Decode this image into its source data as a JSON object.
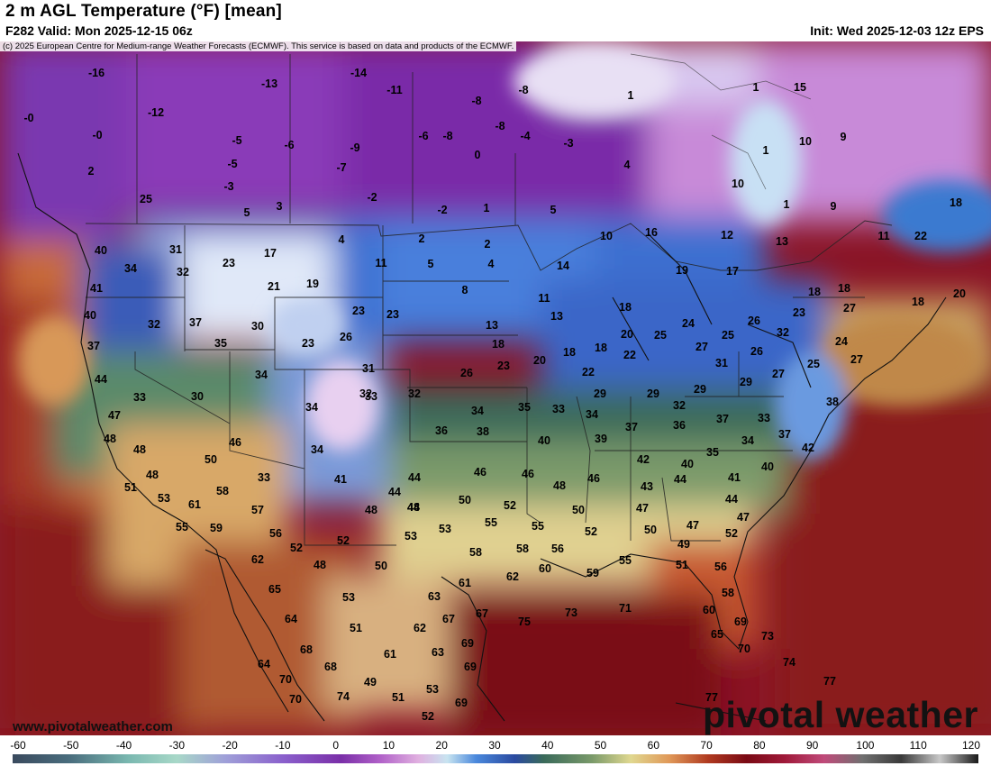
{
  "header": {
    "title": "2 m AGL Temperature (°F) [mean]",
    "valid": "F282 Valid: Mon 2025-12-15 06z",
    "init": "Init: Wed 2025-12-03 12z EPS",
    "copyright": "(c) 2025 European Centre for Medium-range Weather Forecasts (ECMWF). This service is based on data and products of the ECMWF."
  },
  "branding": {
    "website": "www.pivotalweather.com",
    "logo": "pivotal weather"
  },
  "colorbar": {
    "ticks": [
      "-60",
      "-50",
      "-40",
      "-30",
      "-20",
      "-10",
      "0",
      "10",
      "20",
      "30",
      "40",
      "50",
      "60",
      "70",
      "80",
      "90",
      "100",
      "110",
      "120"
    ],
    "palette": [
      "#3a4a5e",
      "#4a6a7a",
      "#6aa0a0",
      "#8cc8c0",
      "#9f9fd8",
      "#8a6ad0",
      "#7a2fa8",
      "#a84fc0",
      "#d48ad8",
      "#d8c0e8",
      "#c8e8f0",
      "#3f7fd8",
      "#2f4fa0",
      "#3a6a5a",
      "#5a8a5a",
      "#d8d08a",
      "#e8a860",
      "#c85a2a",
      "#8a1a1a",
      "#6a0a1a",
      "#b01a50",
      "#6a6a6a",
      "#3a3a3a",
      "#d8d8d8",
      "#1a1a1a"
    ]
  },
  "temperature_labels": [
    {
      "value": "-16",
      "id": "t1"
    },
    {
      "value": "-14",
      "id": "t2"
    },
    {
      "value": "-13",
      "id": "t3"
    },
    {
      "value": "-11",
      "id": "t4"
    },
    {
      "value": "-12",
      "id": "t5"
    },
    {
      "value": "-0",
      "id": "t6"
    },
    {
      "value": "-0",
      "id": "t7"
    },
    {
      "value": "-8",
      "id": "t8"
    },
    {
      "value": "-5",
      "id": "t9"
    },
    {
      "value": "-6",
      "id": "t10"
    },
    {
      "value": "-9",
      "id": "t11"
    },
    {
      "value": "-7",
      "id": "t12"
    },
    {
      "value": "-5",
      "id": "t13"
    },
    {
      "value": "-3",
      "id": "t14"
    },
    {
      "value": "2",
      "id": "t15"
    },
    {
      "value": "5",
      "id": "t16"
    },
    {
      "value": "3",
      "id": "t17"
    },
    {
      "value": "-2",
      "id": "t18"
    },
    {
      "value": "25",
      "id": "t19"
    },
    {
      "value": "-6",
      "id": "t20"
    },
    {
      "value": "-8",
      "id": "t21"
    },
    {
      "value": "-8",
      "id": "t22"
    },
    {
      "value": "-8",
      "id": "t23"
    },
    {
      "value": "0",
      "id": "t24"
    },
    {
      "value": "-2",
      "id": "t25"
    },
    {
      "value": "1",
      "id": "t26"
    },
    {
      "value": "-4",
      "id": "t27"
    },
    {
      "value": "-3",
      "id": "t28"
    },
    {
      "value": "4",
      "id": "t29"
    },
    {
      "value": "5",
      "id": "t30"
    },
    {
      "value": "1",
      "id": "t31"
    },
    {
      "value": "1",
      "id": "t32"
    },
    {
      "value": "15",
      "id": "t33"
    },
    {
      "value": "10",
      "id": "t34"
    },
    {
      "value": "9",
      "id": "t35"
    },
    {
      "value": "1",
      "id": "t36"
    },
    {
      "value": "10",
      "id": "t37"
    },
    {
      "value": "1",
      "id": "t38"
    },
    {
      "value": "9",
      "id": "t39"
    },
    {
      "value": "18",
      "id": "t40"
    },
    {
      "value": "11",
      "id": "t41"
    },
    {
      "value": "22",
      "id": "t42"
    },
    {
      "value": "13",
      "id": "t43"
    },
    {
      "value": "12",
      "id": "t44"
    },
    {
      "value": "18",
      "id": "t45"
    },
    {
      "value": "20",
      "id": "t46"
    },
    {
      "value": "18",
      "id": "t47"
    },
    {
      "value": "4",
      "id": "t48"
    },
    {
      "value": "2",
      "id": "t49"
    },
    {
      "value": "2",
      "id": "t50"
    },
    {
      "value": "4",
      "id": "t51"
    },
    {
      "value": "5",
      "id": "t52"
    },
    {
      "value": "11",
      "id": "t53"
    },
    {
      "value": "10",
      "id": "t54"
    },
    {
      "value": "16",
      "id": "t55"
    },
    {
      "value": "14",
      "id": "t56"
    },
    {
      "value": "17",
      "id": "t57"
    },
    {
      "value": "19",
      "id": "t58"
    },
    {
      "value": "31",
      "id": "t59"
    },
    {
      "value": "23",
      "id": "t60"
    },
    {
      "value": "17",
      "id": "t61"
    },
    {
      "value": "34",
      "id": "t62"
    },
    {
      "value": "32",
      "id": "t63"
    },
    {
      "value": "21",
      "id": "t64"
    },
    {
      "value": "19",
      "id": "t65"
    },
    {
      "value": "40",
      "id": "t66"
    },
    {
      "value": "41",
      "id": "t67"
    },
    {
      "value": "8",
      "id": "t68"
    },
    {
      "value": "11",
      "id": "t69"
    },
    {
      "value": "13",
      "id": "t70"
    },
    {
      "value": "18",
      "id": "t71"
    },
    {
      "value": "18",
      "id": "t72"
    },
    {
      "value": "27",
      "id": "t73"
    },
    {
      "value": "23",
      "id": "t74"
    },
    {
      "value": "40",
      "id": "t75"
    },
    {
      "value": "32",
      "id": "t76"
    },
    {
      "value": "37",
      "id": "t77"
    },
    {
      "value": "30",
      "id": "t78"
    },
    {
      "value": "23",
      "id": "t79"
    },
    {
      "value": "23",
      "id": "t80"
    },
    {
      "value": "26",
      "id": "t81"
    },
    {
      "value": "37",
      "id": "t82"
    },
    {
      "value": "35",
      "id": "t83"
    },
    {
      "value": "23",
      "id": "t84"
    },
    {
      "value": "18",
      "id": "t85"
    },
    {
      "value": "13",
      "id": "t86"
    },
    {
      "value": "20",
      "id": "t87"
    },
    {
      "value": "18",
      "id": "t88"
    },
    {
      "value": "18",
      "id": "t89"
    },
    {
      "value": "20",
      "id": "t90"
    },
    {
      "value": "25",
      "id": "t91"
    },
    {
      "value": "24",
      "id": "t92"
    },
    {
      "value": "26",
      "id": "t93"
    },
    {
      "value": "25",
      "id": "t94"
    },
    {
      "value": "32",
      "id": "t95"
    },
    {
      "value": "24",
      "id": "t96"
    },
    {
      "value": "44",
      "id": "t97"
    },
    {
      "value": "33",
      "id": "t98"
    },
    {
      "value": "34",
      "id": "t99"
    },
    {
      "value": "31",
      "id": "t100"
    },
    {
      "value": "26",
      "id": "t101"
    },
    {
      "value": "23",
      "id": "t102"
    },
    {
      "value": "22",
      "id": "t103"
    },
    {
      "value": "22",
      "id": "t104"
    },
    {
      "value": "27",
      "id": "t105"
    },
    {
      "value": "26",
      "id": "t106"
    },
    {
      "value": "31",
      "id": "t107"
    },
    {
      "value": "27",
      "id": "t108"
    },
    {
      "value": "25",
      "id": "t109"
    },
    {
      "value": "27",
      "id": "t110"
    },
    {
      "value": "47",
      "id": "t111"
    },
    {
      "value": "30",
      "id": "t112"
    },
    {
      "value": "32",
      "id": "t113"
    },
    {
      "value": "32",
      "id": "t114"
    },
    {
      "value": "34",
      "id": "t115"
    },
    {
      "value": "35",
      "id": "t116"
    },
    {
      "value": "33",
      "id": "t117"
    },
    {
      "value": "29",
      "id": "t118"
    },
    {
      "value": "29",
      "id": "t119"
    },
    {
      "value": "32",
      "id": "t120"
    },
    {
      "value": "29",
      "id": "t121"
    },
    {
      "value": "29",
      "id": "t122"
    },
    {
      "value": "38",
      "id": "t123"
    },
    {
      "value": "48",
      "id": "t124"
    },
    {
      "value": "46",
      "id": "t125"
    },
    {
      "value": "33",
      "id": "t126"
    },
    {
      "value": "36",
      "id": "t127"
    },
    {
      "value": "34",
      "id": "t128"
    },
    {
      "value": "38",
      "id": "t129"
    },
    {
      "value": "34",
      "id": "t130"
    },
    {
      "value": "37",
      "id": "t131"
    },
    {
      "value": "36",
      "id": "t132"
    },
    {
      "value": "37",
      "id": "t133"
    },
    {
      "value": "33",
      "id": "t134"
    },
    {
      "value": "37",
      "id": "t135"
    },
    {
      "value": "48",
      "id": "t136"
    },
    {
      "value": "50",
      "id": "t137"
    },
    {
      "value": "33",
      "id": "t138"
    },
    {
      "value": "34",
      "id": "t139"
    },
    {
      "value": "40",
      "id": "t140"
    },
    {
      "value": "39",
      "id": "t141"
    },
    {
      "value": "42",
      "id": "t142"
    },
    {
      "value": "35",
      "id": "t143"
    },
    {
      "value": "34",
      "id": "t144"
    },
    {
      "value": "42",
      "id": "t145"
    },
    {
      "value": "48",
      "id": "t146"
    },
    {
      "value": "51",
      "id": "t147"
    },
    {
      "value": "41",
      "id": "t148"
    },
    {
      "value": "44",
      "id": "t149"
    },
    {
      "value": "46",
      "id": "t150"
    },
    {
      "value": "46",
      "id": "t151"
    },
    {
      "value": "40",
      "id": "t152"
    },
    {
      "value": "40",
      "id": "t153"
    },
    {
      "value": "53",
      "id": "t154"
    },
    {
      "value": "61",
      "id": "t155"
    },
    {
      "value": "58",
      "id": "t156"
    },
    {
      "value": "44",
      "id": "t157"
    },
    {
      "value": "44",
      "id": "t158"
    },
    {
      "value": "48",
      "id": "t159"
    },
    {
      "value": "46",
      "id": "t160"
    },
    {
      "value": "43",
      "id": "t161"
    },
    {
      "value": "41",
      "id": "t162"
    },
    {
      "value": "44",
      "id": "t163"
    },
    {
      "value": "44",
      "id": "t164"
    },
    {
      "value": "57",
      "id": "t165"
    },
    {
      "value": "48",
      "id": "t166"
    },
    {
      "value": "48",
      "id": "t167"
    },
    {
      "value": "50",
      "id": "t168"
    },
    {
      "value": "52",
      "id": "t169"
    },
    {
      "value": "50",
      "id": "t170"
    },
    {
      "value": "47",
      "id": "t171"
    },
    {
      "value": "47",
      "id": "t172"
    },
    {
      "value": "55",
      "id": "t173"
    },
    {
      "value": "59",
      "id": "t174"
    },
    {
      "value": "56",
      "id": "t175"
    },
    {
      "value": "53",
      "id": "t176"
    },
    {
      "value": "53",
      "id": "t177"
    },
    {
      "value": "55",
      "id": "t178"
    },
    {
      "value": "55",
      "id": "t179"
    },
    {
      "value": "52",
      "id": "t180"
    },
    {
      "value": "50",
      "id": "t181"
    },
    {
      "value": "47",
      "id": "t182"
    },
    {
      "value": "52",
      "id": "t183"
    },
    {
      "value": "52",
      "id": "t184"
    },
    {
      "value": "52",
      "id": "t185"
    },
    {
      "value": "58",
      "id": "t186"
    },
    {
      "value": "58",
      "id": "t187"
    },
    {
      "value": "56",
      "id": "t188"
    },
    {
      "value": "49",
      "id": "t189"
    },
    {
      "value": "62",
      "id": "t190"
    },
    {
      "value": "48",
      "id": "t191"
    },
    {
      "value": "50",
      "id": "t192"
    },
    {
      "value": "62",
      "id": "t193"
    },
    {
      "value": "60",
      "id": "t194"
    },
    {
      "value": "59",
      "id": "t195"
    },
    {
      "value": "55",
      "id": "t196"
    },
    {
      "value": "51",
      "id": "t197"
    },
    {
      "value": "56",
      "id": "t198"
    },
    {
      "value": "65",
      "id": "t199"
    },
    {
      "value": "53",
      "id": "t200"
    },
    {
      "value": "61",
      "id": "t201"
    },
    {
      "value": "63",
      "id": "t202"
    },
    {
      "value": "58",
      "id": "t203"
    },
    {
      "value": "64",
      "id": "t204"
    },
    {
      "value": "51",
      "id": "t205"
    },
    {
      "value": "62",
      "id": "t206"
    },
    {
      "value": "67",
      "id": "t207"
    },
    {
      "value": "67",
      "id": "t208"
    },
    {
      "value": "75",
      "id": "t209"
    },
    {
      "value": "73",
      "id": "t210"
    },
    {
      "value": "71",
      "id": "t211"
    },
    {
      "value": "60",
      "id": "t212"
    },
    {
      "value": "69",
      "id": "t213"
    },
    {
      "value": "68",
      "id": "t214"
    },
    {
      "value": "61",
      "id": "t215"
    },
    {
      "value": "63",
      "id": "t216"
    },
    {
      "value": "69",
      "id": "t217"
    },
    {
      "value": "65",
      "id": "t218"
    },
    {
      "value": "70",
      "id": "t219"
    },
    {
      "value": "73",
      "id": "t220"
    },
    {
      "value": "64",
      "id": "t221"
    },
    {
      "value": "70",
      "id": "t222"
    },
    {
      "value": "68",
      "id": "t223"
    },
    {
      "value": "49",
      "id": "t224"
    },
    {
      "value": "69",
      "id": "t225"
    },
    {
      "value": "74",
      "id": "t226"
    },
    {
      "value": "70",
      "id": "t227"
    },
    {
      "value": "74",
      "id": "t228"
    },
    {
      "value": "51",
      "id": "t229"
    },
    {
      "value": "53",
      "id": "t230"
    },
    {
      "value": "69",
      "id": "t231"
    },
    {
      "value": "77",
      "id": "t232"
    },
    {
      "value": "77",
      "id": "t233"
    },
    {
      "value": "52",
      "id": "t234"
    }
  ]
}
